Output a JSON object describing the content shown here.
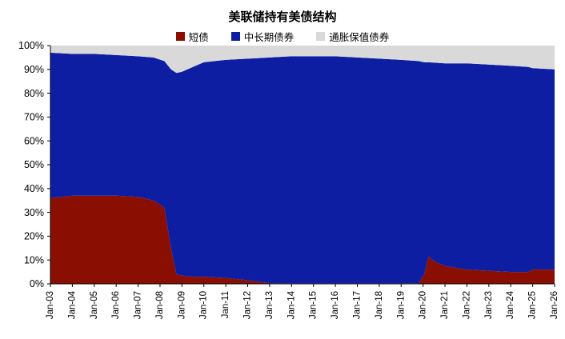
{
  "chart": {
    "title": "美联储持有美债结构",
    "legend": [
      {
        "label": "短债",
        "color": "#8B0E03"
      },
      {
        "label": "中长期债券",
        "color": "#0D1EA2"
      },
      {
        "label": "通胀保值债券",
        "color": "#D9D9D9"
      }
    ]
  },
  "chart_data": {
    "type": "area",
    "stacked": true,
    "percent": true,
    "title": "美联储持有美债结构",
    "xlabel": "",
    "ylabel": "",
    "ylim": [
      0,
      100
    ],
    "y_ticks": [
      "0%",
      "10%",
      "20%",
      "30%",
      "40%",
      "50%",
      "60%",
      "70%",
      "80%",
      "90%",
      "100%"
    ],
    "x_tick_labels": [
      "Jan-03",
      "Jan-04",
      "Jan-05",
      "Jan-06",
      "Jan-07",
      "Jan-08",
      "Jan-09",
      "Jan-10",
      "Jan-11",
      "Jan-12",
      "Jan-13",
      "Jan-14",
      "Jan-15",
      "Jan-16",
      "Jan-17",
      "Jan-18",
      "Jan-19",
      "Jan-20",
      "Jan-21",
      "Jan-22",
      "Jan-23",
      "Jan-24",
      "Jan-25",
      "Jan-26"
    ],
    "x_tick_years": [
      2003,
      2004,
      2005,
      2006,
      2007,
      2008,
      2009,
      2010,
      2011,
      2012,
      2013,
      2014,
      2015,
      2016,
      2017,
      2018,
      2019,
      2020,
      2021,
      2022,
      2023,
      2024,
      2025,
      2026
    ],
    "x": [
      2003,
      2004,
      2005,
      2006,
      2007,
      2007.7,
      2008.2,
      2008.5,
      2008.75,
      2009,
      2009.5,
      2010,
      2011,
      2012,
      2012.6,
      2013,
      2014,
      2015,
      2016,
      2017,
      2018,
      2019,
      2019.8,
      2020.05,
      2020.25,
      2020.6,
      2021,
      2022,
      2023,
      2024,
      2024.8,
      2025,
      2026
    ],
    "series": [
      {
        "name": "短债",
        "color": "#8B0E03",
        "values": [
          36,
          37,
          37,
          37,
          36.5,
          35,
          32,
          15,
          4,
          3.5,
          3,
          3,
          2.5,
          1.5,
          0.8,
          0.3,
          0.2,
          0.2,
          0.2,
          0.2,
          0.2,
          0.2,
          0.3,
          4,
          11.5,
          9,
          7.5,
          6,
          5.5,
          5,
          5,
          6,
          6
        ]
      },
      {
        "name": "中长期债券",
        "color": "#0D1EA2",
        "values": [
          61,
          59.5,
          59.5,
          59,
          59,
          60,
          61.5,
          75,
          84.5,
          85.5,
          88,
          90,
          91.5,
          93,
          94,
          94.7,
          95.3,
          95.3,
          95.3,
          94.8,
          94.3,
          93.8,
          93.2,
          89,
          81.5,
          83.8,
          85,
          86.5,
          86.5,
          86.5,
          86,
          84.5,
          84
        ]
      },
      {
        "name": "通胀保值债券",
        "color": "#D9D9D9",
        "values": [
          3,
          3.5,
          3.5,
          4,
          4.5,
          5,
          6.5,
          10,
          11.5,
          11,
          9,
          7,
          6,
          5.5,
          5.2,
          5,
          4.5,
          4.5,
          4.5,
          5,
          5.5,
          6,
          6.5,
          7,
          7,
          7.2,
          7.5,
          7.5,
          8,
          8.5,
          9,
          9.5,
          10
        ]
      }
    ],
    "legend_position": "top",
    "grid": false
  }
}
